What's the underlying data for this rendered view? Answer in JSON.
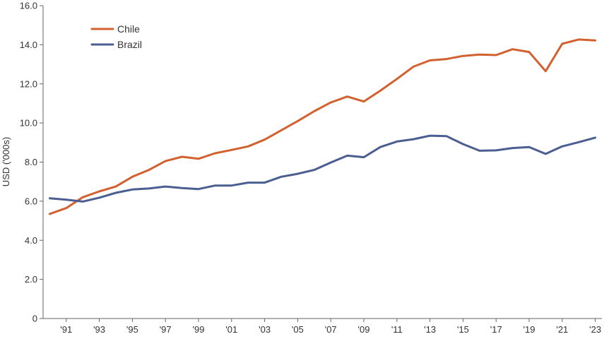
{
  "chart_data": {
    "type": "line",
    "title": "",
    "xlabel": "",
    "ylabel": "USD ('000s)",
    "ylim": [
      0,
      16
    ],
    "yticks": [
      0,
      2,
      4,
      6,
      8,
      10,
      12,
      14,
      16
    ],
    "ytick_labels": [
      "0",
      "2.0",
      "4.0",
      "6.0",
      "8.0",
      "10.0",
      "12.0",
      "14.0",
      "16.0"
    ],
    "xlim": [
      1989.6,
      2023.4
    ],
    "xticks": [
      1991,
      1993,
      1995,
      1997,
      1999,
      2001,
      2003,
      2005,
      2007,
      2009,
      2011,
      2013,
      2015,
      2017,
      2019,
      2021,
      2023
    ],
    "xtick_labels": [
      "'91",
      "'93",
      "'95",
      "'97",
      "'99",
      "'01",
      "'03",
      "'05",
      "'07",
      "'09",
      "'11",
      "'13",
      "'15",
      "'17",
      "'19",
      "'21",
      "'23"
    ],
    "grid": false,
    "legend_position": "top-left",
    "x": [
      1990,
      1991,
      1992,
      1993,
      1994,
      1995,
      1996,
      1997,
      1998,
      1999,
      2000,
      2001,
      2002,
      2003,
      2004,
      2005,
      2006,
      2007,
      2008,
      2009,
      2010,
      2011,
      2012,
      2013,
      2014,
      2015,
      2016,
      2017,
      2018,
      2019,
      2020,
      2021,
      2022,
      2023
    ],
    "series": [
      {
        "name": "Chile",
        "color": "#D2612F",
        "values": [
          5.35,
          5.65,
          6.2,
          6.5,
          6.75,
          7.25,
          7.6,
          8.05,
          8.27,
          8.17,
          8.45,
          8.62,
          8.8,
          9.15,
          9.62,
          10.1,
          10.6,
          11.05,
          11.35,
          11.1,
          11.65,
          12.25,
          12.88,
          13.2,
          13.27,
          13.43,
          13.5,
          13.47,
          13.77,
          13.63,
          12.65,
          14.05,
          14.27,
          14.22
        ]
      },
      {
        "name": "Brazil",
        "color": "#4B5E91",
        "values": [
          6.15,
          6.08,
          5.98,
          6.18,
          6.43,
          6.6,
          6.65,
          6.75,
          6.67,
          6.62,
          6.8,
          6.8,
          6.95,
          6.95,
          7.25,
          7.4,
          7.6,
          7.98,
          8.33,
          8.25,
          8.77,
          9.05,
          9.17,
          9.35,
          9.33,
          8.92,
          8.58,
          8.6,
          8.72,
          8.77,
          8.42,
          8.8,
          9.02,
          9.25
        ]
      }
    ]
  }
}
